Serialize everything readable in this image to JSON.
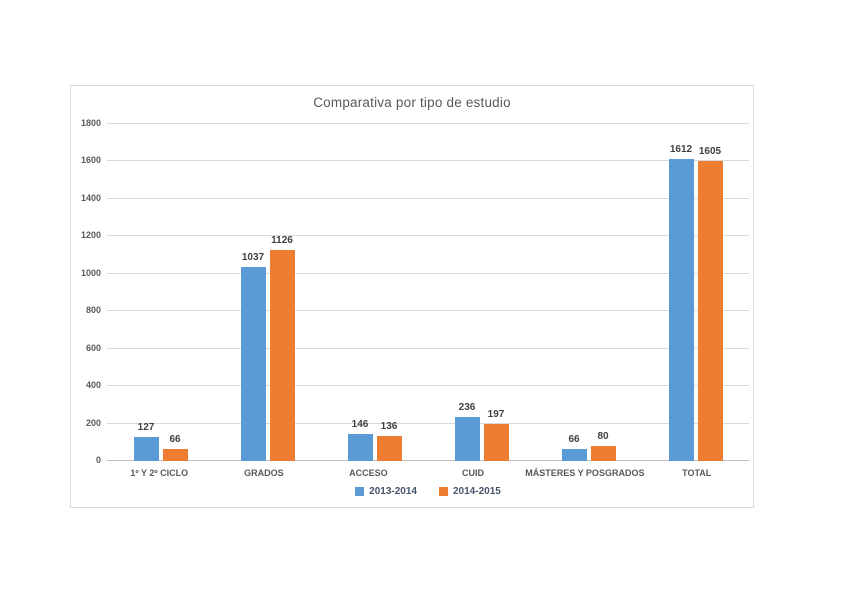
{
  "chart_data": {
    "type": "bar",
    "title": "Comparativa por tipo de estudio",
    "categories": [
      "1º Y 2º CICLO",
      "GRADOS",
      "ACCESO",
      "CUID",
      "MÁSTERES Y POSGRADOS",
      "TOTAL"
    ],
    "series": [
      {
        "name": "2013-2014",
        "color": "#5b9bd5",
        "values": [
          127,
          1037,
          146,
          236,
          66,
          1612
        ]
      },
      {
        "name": "2014-2015",
        "color": "#ed7d31",
        "values": [
          66,
          1126,
          136,
          197,
          80,
          1605
        ]
      }
    ],
    "ylim": [
      0,
      1800
    ],
    "yticks": [
      0,
      200,
      400,
      600,
      800,
      1000,
      1200,
      1400,
      1600,
      1800
    ],
    "grid": true,
    "legend_position": "bottom",
    "xlabel": "",
    "ylabel": "",
    "data_labels": true
  },
  "colors": {
    "grid": "#d9d9d9",
    "axis": "#bfbfbf",
    "title": "#595959",
    "tick_label": "#595959",
    "data_label": "#404040",
    "chart_border": "#d9d9d9",
    "background": "#ffffff"
  }
}
